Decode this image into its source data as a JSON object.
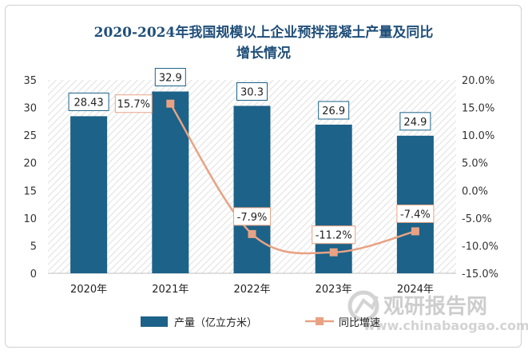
{
  "chart_data": {
    "type": "bar",
    "title_line1": "2020-2024年我国规模以上企业预拌混凝土产量及同比",
    "title_line2": "增长情况",
    "categories": [
      "2020年",
      "2021年",
      "2022年",
      "2023年",
      "2024年"
    ],
    "series": [
      {
        "name": "产量（亿立方米）",
        "kind": "bar",
        "axis": "left",
        "color": "#1c6289",
        "values": [
          28.43,
          32.9,
          30.3,
          26.9,
          24.9
        ],
        "labels": [
          "28.43",
          "32.9",
          "30.3",
          "26.9",
          "24.9"
        ]
      },
      {
        "name": "同比增速",
        "kind": "line",
        "axis": "right",
        "color": "#e8a283",
        "values": [
          null,
          15.7,
          -7.9,
          -11.2,
          -7.4
        ],
        "labels": [
          "",
          "15.7%",
          "-7.9%",
          "-11.2%",
          "-7.4%"
        ]
      }
    ],
    "y_left": {
      "min": 0,
      "max": 35,
      "step": 5,
      "ticks": [
        "0",
        "5",
        "10",
        "15",
        "20",
        "25",
        "30",
        "35"
      ]
    },
    "y_right": {
      "min": -15,
      "max": 20,
      "step": 5,
      "ticks": [
        "-15.0%",
        "-10.0%",
        "-5.0%",
        "0.0%",
        "5.0%",
        "10.0%",
        "15.0%",
        "20.0%"
      ]
    },
    "legend_position": "bottom"
  },
  "watermark": {
    "text": "观研报告网",
    "url": "www.chinabaogao.com"
  }
}
